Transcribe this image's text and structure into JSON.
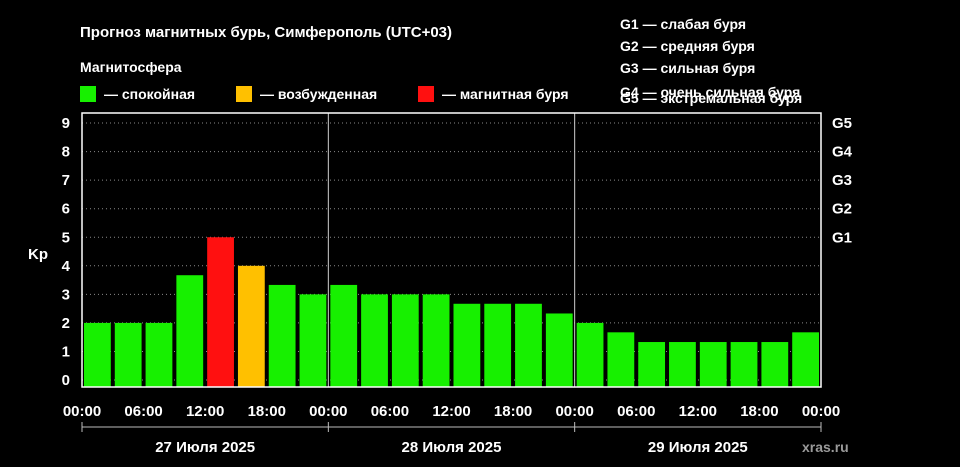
{
  "header": {
    "title": "Прогноз магнитных бурь, Симферополь (UTC+03)",
    "magnetosphere_label": "Магнитосфера"
  },
  "legend": {
    "items": [
      {
        "label": "— спокойная",
        "color": "#17f000"
      },
      {
        "label": "— возбужденная",
        "color": "#ffc000"
      },
      {
        "label": "— магнитная буря",
        "color": "#ff1010"
      }
    ],
    "storm_levels": [
      "G1 — слабая буря",
      "G2 — средняя буря",
      "G3 — сильная буря",
      "G4 — очень сильная буря",
      "G5 — экстремальная буря"
    ]
  },
  "watermark": "xras.ru",
  "chart_data": {
    "type": "bar",
    "ylabel": "Kp",
    "ylim": [
      0,
      9
    ],
    "y_ticks": [
      "0",
      "1",
      "2",
      "3",
      "4",
      "5",
      "6",
      "7",
      "8",
      "9"
    ],
    "right_axis_ticks": [
      {
        "label": "G1",
        "value": 5
      },
      {
        "label": "G2",
        "value": 6
      },
      {
        "label": "G3",
        "value": 7
      },
      {
        "label": "G4",
        "value": 8
      },
      {
        "label": "G5",
        "value": 9
      }
    ],
    "x_tick_labels": [
      "00:00",
      "06:00",
      "12:00",
      "18:00",
      "00:00",
      "06:00",
      "12:00",
      "18:00",
      "00:00",
      "06:00",
      "12:00",
      "18:00",
      "00:00"
    ],
    "days": [
      "27 Июля 2025",
      "28 Июля 2025",
      "29 Июля 2025"
    ],
    "grid": true,
    "bars_per_day": 8,
    "values": [
      2.0,
      2.0,
      2.0,
      3.67,
      5.0,
      4.0,
      3.33,
      3.0,
      3.33,
      3.0,
      3.0,
      3.0,
      2.67,
      2.67,
      2.67,
      2.33,
      2.0,
      1.67,
      1.33,
      1.33,
      1.33,
      1.33,
      1.33,
      1.67
    ],
    "colors": {
      "quiet": "#17f000",
      "active": "#ffc000",
      "storm": "#ff1010"
    }
  }
}
